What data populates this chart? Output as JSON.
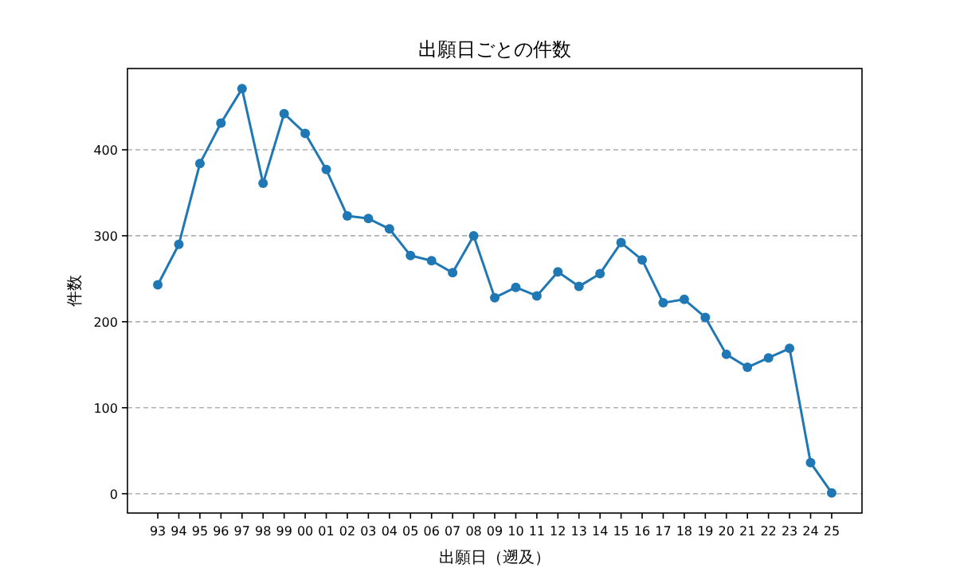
{
  "chart_data": {
    "type": "line",
    "title": "出願日ごとの件数",
    "xlabel": "出願日（遡及）",
    "ylabel": "件数",
    "categories": [
      "93",
      "94",
      "95",
      "96",
      "97",
      "98",
      "99",
      "00",
      "01",
      "02",
      "03",
      "04",
      "05",
      "06",
      "07",
      "08",
      "09",
      "10",
      "11",
      "12",
      "13",
      "14",
      "15",
      "16",
      "17",
      "18",
      "19",
      "20",
      "21",
      "22",
      "23",
      "24",
      "25"
    ],
    "series": [
      {
        "color": "#1f77b4",
        "values": [
          243,
          290,
          384,
          431,
          471,
          361,
          442,
          419,
          377,
          323,
          320,
          308,
          277,
          271,
          257,
          300,
          228,
          240,
          230,
          258,
          241,
          256,
          292,
          272,
          222,
          226,
          205,
          162,
          147,
          158,
          169,
          36,
          1
        ]
      }
    ],
    "ylim": [
      -22.5,
      494.5
    ],
    "yticks": [
      0,
      100,
      200,
      300,
      400
    ],
    "grid": "y",
    "marker": "circle",
    "line_style": "solid"
  }
}
